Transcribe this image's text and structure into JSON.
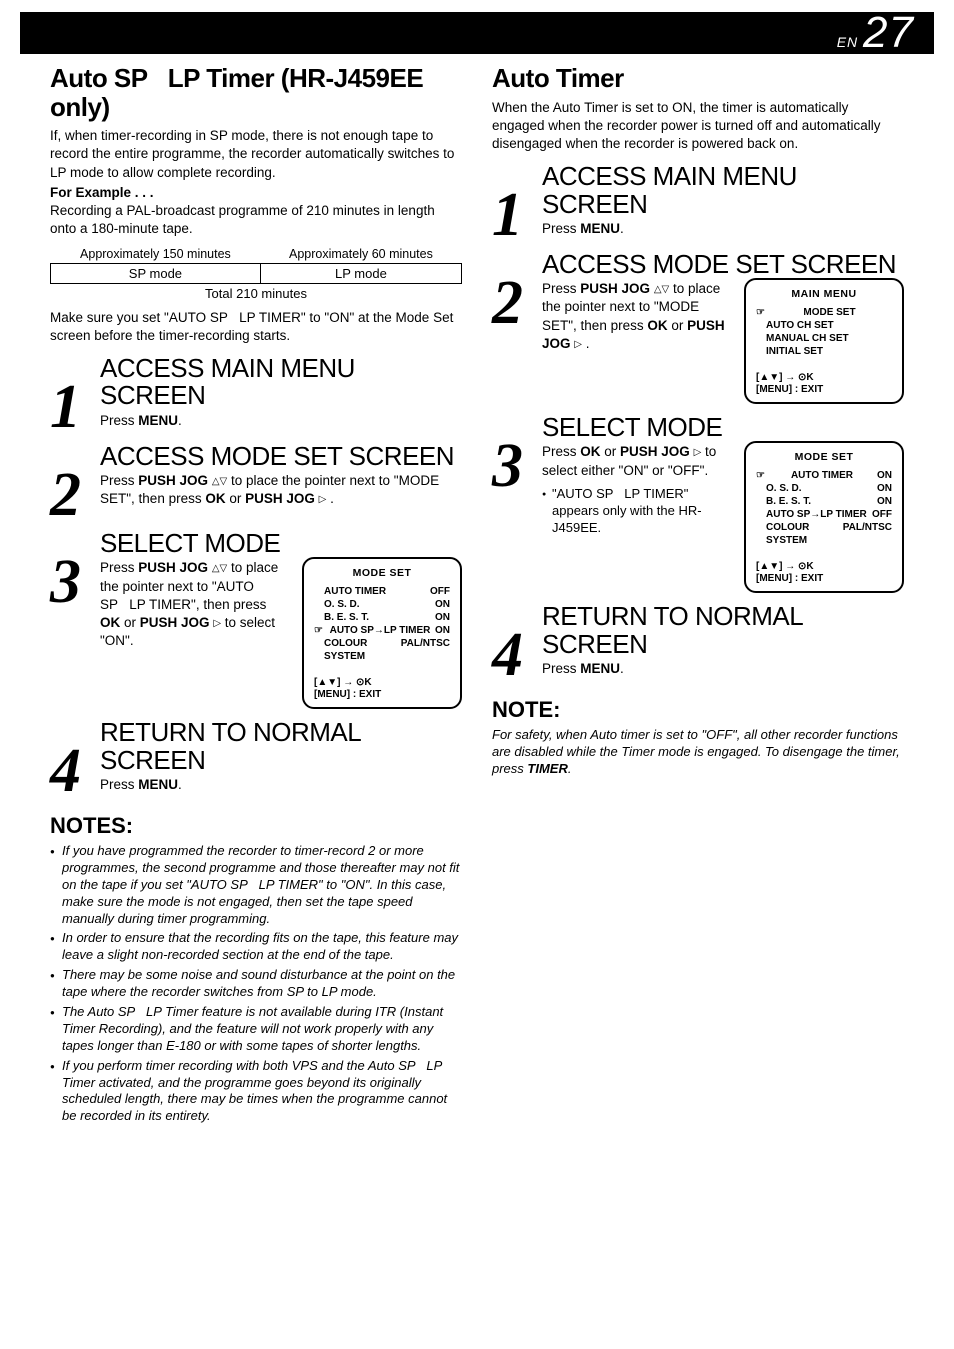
{
  "header": {
    "prefix": "EN",
    "pagenum": "27"
  },
  "left": {
    "title": "Auto SP   LP Timer (HR-J459EE only)",
    "intro": "If, when timer-recording in SP mode, there is not enough tape to record the entire programme, the recorder automatically switches to LP mode to allow complete recording.",
    "example_label": "For Example . . .",
    "example_text": "Recording a PAL-broadcast programme of 210 minutes in length onto a 180-minute tape.",
    "table": {
      "approx_sp": "Approximately 150 minutes",
      "approx_lp": "Approximately 60 minutes",
      "sp": "SP mode",
      "lp": "LP mode",
      "total": "Total 210 minutes"
    },
    "after_table": "Make sure you set \"AUTO SP   LP TIMER\" to \"ON\" at the Mode Set screen before the timer-recording starts.",
    "steps": {
      "s1": {
        "title": "ACCESS MAIN MENU SCREEN",
        "body_pre": "Press ",
        "body_b": "MENU",
        "body_post": "."
      },
      "s2": {
        "title": "ACCESS MODE SET SCREEN",
        "body": "Press <b>PUSH JOG</b> <span class='tri'>△▽</span> to place the pointer next to \"MODE SET\", then press <b>OK</b> or <b>PUSH JOG</b> <span class='tri'>▷</span> ."
      },
      "s3": {
        "title": "SELECT MODE",
        "body": "Press <b>PUSH JOG</b> <span class='tri'>△▽</span> to place the pointer next to \"AUTO SP   LP TIMER\", then press <b>OK</b> or <b>PUSH JOG</b> <span class='tri'>▷</span>  to select \"ON\".",
        "osd": {
          "title": "MODE SET",
          "lines": [
            {
              "label": "AUTO TIMER",
              "val": "OFF",
              "pointer": false
            },
            {
              "label": "O. S. D.",
              "val": "ON",
              "pointer": false
            },
            {
              "label": "B. E. S. T.",
              "val": "ON",
              "pointer": false
            },
            {
              "label": "AUTO SP→LP TIMER",
              "val": "ON",
              "pointer": true
            },
            {
              "label": "COLOUR SYSTEM",
              "val": "PAL/NTSC",
              "pointer": false
            }
          ],
          "hint1": "[▲▼] → ⊙K",
          "hint2": "[MENU] : EXIT"
        }
      },
      "s4": {
        "title": "RETURN TO NORMAL SCREEN",
        "body_pre": "Press ",
        "body_b": "MENU",
        "body_post": "."
      }
    },
    "notes_title": "NOTES:",
    "notes": [
      "If you have programmed the recorder to timer-record 2 or more programmes, the second programme and those thereafter may not fit on the tape if you set \"AUTO SP   LP TIMER\" to \"ON\". In this case, make sure the mode is not engaged, then set the tape speed manually during timer programming.",
      "In order to ensure that the recording fits on the tape, this feature may leave a slight non-recorded section at the end of the tape.",
      "There may be some noise and sound disturbance at the point on the tape where the recorder switches from SP to LP mode.",
      "The Auto SP   LP Timer feature is not available during ITR (Instant Timer Recording), and the feature will not work properly with any tapes longer than E-180 or with some tapes of shorter lengths.",
      "If you perform timer recording with both VPS and the Auto SP   LP Timer activated, and the programme goes beyond its originally scheduled length, there may be times when the programme cannot be recorded in its entirety."
    ]
  },
  "right": {
    "title": "Auto Timer",
    "intro": "When the Auto Timer is set to ON, the timer is automatically engaged when the recorder power is turned off and automatically disengaged when the recorder is powered back on.",
    "steps": {
      "s1": {
        "title": "ACCESS MAIN MENU SCREEN",
        "body_pre": "Press ",
        "body_b": "MENU",
        "body_post": "."
      },
      "s2": {
        "title": "ACCESS MODE SET SCREEN",
        "body": "Press <b>PUSH JOG</b> <span class='tri'>△▽</span> to place the pointer next to \"MODE SET\", then press <b>OK</b> or <b>PUSH JOG</b> <span class='tri'>▷</span> .",
        "osd": {
          "title": "MAIN MENU",
          "lines": [
            {
              "label": "MODE SET",
              "val": "",
              "pointer": true
            },
            {
              "label": "AUTO CH SET",
              "val": "",
              "pointer": false
            },
            {
              "label": "MANUAL CH SET",
              "val": "",
              "pointer": false
            },
            {
              "label": "INITIAL SET",
              "val": "",
              "pointer": false
            }
          ],
          "hint1": "[▲▼] → ⊙K",
          "hint2": "[MENU] : EXIT"
        }
      },
      "s3": {
        "title": "SELECT MODE",
        "body": "Press <b>OK</b> or <b>PUSH JOG</b> <span class='tri'>▷</span> to select either \"ON\" or \"OFF\".",
        "bullet": "\"AUTO SP   LP TIMER\" appears only with the HR-J459EE.",
        "osd": {
          "title": "MODE SET",
          "lines": [
            {
              "label": "AUTO TIMER",
              "val": "ON",
              "pointer": true
            },
            {
              "label": "O. S. D.",
              "val": "ON",
              "pointer": false
            },
            {
              "label": "B. E. S. T.",
              "val": "ON",
              "pointer": false
            },
            {
              "label": "AUTO SP→LP TIMER",
              "val": "OFF",
              "pointer": false
            },
            {
              "label": "COLOUR SYSTEM",
              "val": "PAL/NTSC",
              "pointer": false
            }
          ],
          "hint1": "[▲▼] → ⊙K",
          "hint2": "[MENU] : EXIT"
        }
      },
      "s4": {
        "title": "RETURN TO NORMAL SCREEN",
        "body_pre": "Press ",
        "body_b": "MENU",
        "body_post": "."
      }
    },
    "note_title": "NOTE:",
    "note_body": "For safety, when Auto timer is set to \"OFF\", all other recorder functions are disabled while the Timer mode is engaged. To disengage the timer, press <b>TIMER</b>."
  }
}
